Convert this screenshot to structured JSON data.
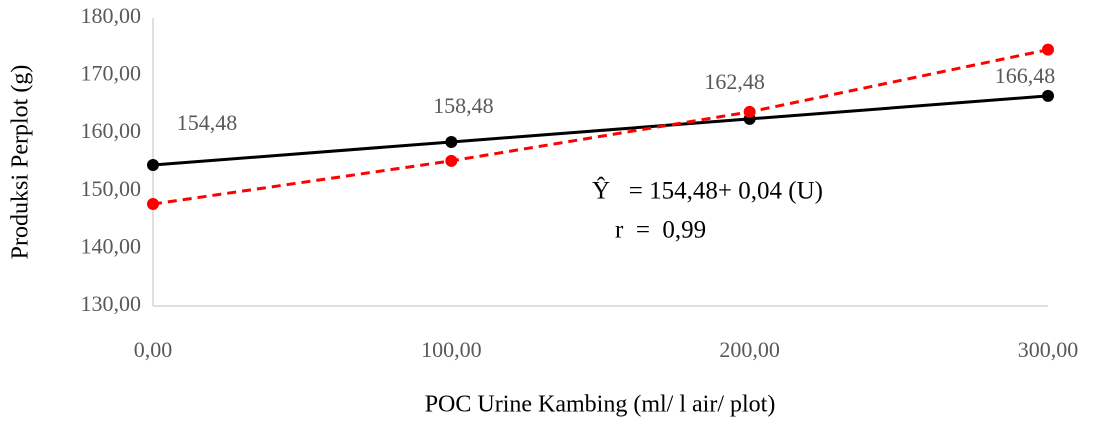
{
  "chart_data": {
    "type": "line",
    "x_label": "POC Urine Kambing (ml/ l air/ plot)",
    "y_label": "Produksi Perplot (g)",
    "x": [
      0,
      100,
      200,
      300
    ],
    "series": [
      {
        "color": "#000000",
        "dashed": false,
        "values": [
          154.48,
          158.48,
          162.48,
          166.48
        ],
        "value_labels": [
          "154,48",
          "158,48",
          "162,48",
          "166,48"
        ]
      },
      {
        "color": "#ff0000",
        "dashed": true,
        "values": [
          147.7,
          155.2,
          163.7,
          174.5
        ]
      }
    ],
    "xlim": [
      0,
      300
    ],
    "xticks": [
      {
        "value": 0,
        "label": "0,00"
      },
      {
        "value": 100,
        "label": "100,00"
      },
      {
        "value": 200,
        "label": "200,00"
      },
      {
        "value": 300,
        "label": "300,00"
      }
    ],
    "ylim": [
      130,
      180
    ],
    "yticks": [
      {
        "value": 130,
        "label": "130,00"
      },
      {
        "value": 140,
        "label": "140,00"
      },
      {
        "value": 150,
        "label": "150,00"
      },
      {
        "value": 160,
        "label": "160,00"
      },
      {
        "value": 170,
        "label": "170,00"
      },
      {
        "value": 180,
        "label": "180,00"
      }
    ],
    "grid": false,
    "annotations": [
      "Ŷ   = 154,48+ 0,04 (U)",
      "r  =  0,99"
    ]
  }
}
